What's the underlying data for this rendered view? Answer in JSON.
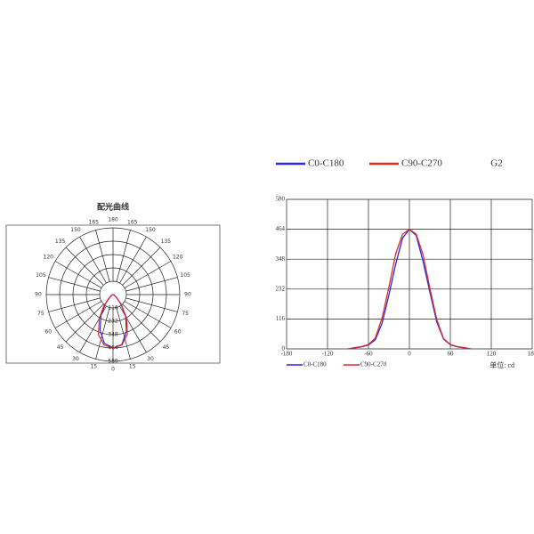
{
  "chart_data": [
    {
      "type": "polar",
      "title": "配光曲线",
      "angles": [
        -90,
        -80,
        -70,
        -60,
        -50,
        -40,
        -30,
        -20,
        -10,
        0,
        10,
        20,
        30,
        40,
        50,
        60,
        70,
        80,
        90
      ],
      "series": [
        {
          "name": "C0-C180",
          "color": "#2a2ae0",
          "values": [
            0,
            4,
            8,
            15,
            35,
            100,
            210,
            330,
            430,
            464,
            440,
            340,
            220,
            105,
            38,
            16,
            8,
            4,
            0
          ]
        },
        {
          "name": "C90-C270",
          "color": "#e02a2a",
          "values": [
            0,
            5,
            9,
            17,
            42,
            120,
            240,
            370,
            445,
            464,
            445,
            365,
            235,
            115,
            40,
            17,
            9,
            5,
            0
          ]
        }
      ],
      "rlim": [
        0,
        580
      ],
      "rticks": [
        116,
        232,
        348,
        464,
        580
      ],
      "angle_ticks": [
        0,
        {
          "value": -15,
          "label": "15"
        },
        {
          "value": -30,
          "label": "30"
        },
        {
          "value": -45,
          "label": "45"
        },
        {
          "value": -60,
          "label": "60"
        },
        {
          "value": -75,
          "label": "75"
        },
        {
          "value": -90,
          "label": "90"
        },
        {
          "value": -105,
          "label": "105"
        },
        {
          "value": -120,
          "label": "120"
        },
        {
          "value": -135,
          "label": "135"
        },
        {
          "value": -150,
          "label": "150"
        },
        {
          "value": -165,
          "label": "165"
        },
        180,
        165,
        150,
        135,
        120,
        105,
        90,
        75,
        60,
        45,
        30,
        15
      ]
    },
    {
      "type": "line",
      "label": "G2",
      "unit_label": "单位: cd",
      "x": [
        -90,
        -80,
        -70,
        -60,
        -50,
        -40,
        -30,
        -20,
        -10,
        0,
        10,
        20,
        30,
        40,
        50,
        60,
        70,
        80,
        90
      ],
      "series": [
        {
          "name": "C0-C180",
          "color": "#2a2ae0",
          "values": [
            0,
            4,
            8,
            15,
            35,
            100,
            210,
            330,
            430,
            464,
            440,
            340,
            220,
            105,
            38,
            16,
            8,
            4,
            0
          ]
        },
        {
          "name": "C90-C270",
          "color": "#e02a2a",
          "values": [
            0,
            5,
            9,
            17,
            42,
            120,
            240,
            370,
            445,
            464,
            445,
            365,
            235,
            115,
            40,
            17,
            9,
            5,
            0
          ]
        }
      ],
      "xlim": [
        -180,
        180
      ],
      "xticks": [
        -180,
        -120,
        -60,
        0,
        60,
        120,
        180
      ],
      "ylim": [
        0,
        580
      ],
      "yticks": [
        0,
        116,
        232,
        348,
        464,
        580
      ],
      "grid": true
    }
  ]
}
